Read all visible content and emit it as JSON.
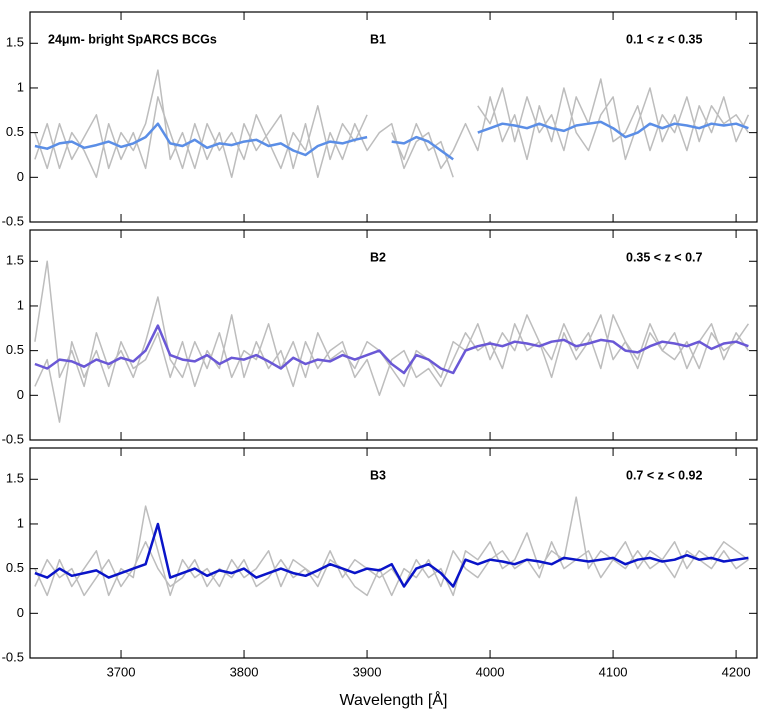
{
  "chart_data": [
    {
      "type": "line",
      "label_left": "24μm- bright SpARCS BCGs",
      "title": "B1",
      "redshift": "0.1 < z < 0.35",
      "x": [
        3630,
        3640,
        3650,
        3660,
        3670,
        3680,
        3690,
        3700,
        3710,
        3720,
        3730,
        3740,
        3750,
        3760,
        3770,
        3780,
        3790,
        3800,
        3810,
        3820,
        3830,
        3840,
        3850,
        3860,
        3870,
        3880,
        3890,
        3900,
        3910,
        3920,
        3930,
        3940,
        3950,
        3960,
        3970,
        3980,
        3990,
        4000,
        4010,
        4020,
        4030,
        4040,
        4050,
        4060,
        4070,
        4080,
        4090,
        4100,
        4110,
        4120,
        4130,
        4140,
        4150,
        4160,
        4170,
        4180,
        4190,
        4200,
        4210
      ],
      "xlim": [
        3626,
        4217
      ],
      "xticks": [
        3700,
        3800,
        3900,
        4000,
        4100,
        4200
      ],
      "ylim": [
        -0.5,
        1.85
      ],
      "yticks": [
        -0.5,
        0,
        0.5,
        1,
        1.5
      ],
      "series": [
        {
          "color": "#bdbdbd",
          "values": [
            0.5,
            0.1,
            0.6,
            0.2,
            0.45,
            0.7,
            0.1,
            0.5,
            0.3,
            0.6,
            1.2,
            0.2,
            0.5,
            0.1,
            0.6,
            0.3,
            0.5,
            0.2,
            0.7,
            0.4,
            0.1,
            0.5,
            0.3,
            0.8,
            0.2,
            0.6,
            0.4,
            0.7,
            null,
            0.5,
            0.2,
            0.6,
            0.3,
            0.4,
            0.0,
            null,
            0.8,
            0.6,
            1.0,
            0.4,
            0.9,
            0.5,
            0.7,
            0.3,
            0.9,
            0.6,
            1.1,
            0.4,
            0.5,
            0.8,
            0.3,
            0.7,
            0.5,
            0.9,
            0.4,
            0.8,
            0.6,
            0.7,
            0.5
          ]
        },
        {
          "color": "#bdbdbd",
          "values": [
            0.2,
            0.6,
            0.1,
            0.5,
            0.3,
            0.0,
            0.6,
            0.2,
            0.5,
            0.1,
            0.9,
            0.5,
            0.1,
            0.6,
            0.2,
            0.5,
            0.0,
            0.6,
            0.3,
            0.5,
            0.7,
            0.1,
            0.6,
            0.0,
            0.5,
            0.2,
            0.6,
            0.3,
            0.5,
            0.6,
            0.1,
            0.4,
            0.5,
            0.1,
            0.3,
            0.6,
            0.3,
            0.9,
            0.4,
            0.7,
            0.2,
            0.8,
            0.4,
            1.0,
            0.5,
            0.3,
            0.7,
            0.9,
            0.2,
            0.6,
            1.0,
            0.4,
            0.7,
            0.3,
            0.8,
            0.5,
            0.9,
            0.4,
            0.7
          ]
        },
        {
          "color": "#5b8ee6",
          "values": [
            0.35,
            0.32,
            0.38,
            0.4,
            0.33,
            0.36,
            0.4,
            0.34,
            0.38,
            0.45,
            0.6,
            0.38,
            0.35,
            0.42,
            0.33,
            0.38,
            0.36,
            0.4,
            0.42,
            0.35,
            0.38,
            0.3,
            0.25,
            0.35,
            0.4,
            0.38,
            0.42,
            0.45,
            null,
            0.4,
            0.38,
            0.45,
            0.4,
            0.3,
            0.2,
            null,
            0.5,
            0.55,
            0.6,
            0.58,
            0.55,
            0.6,
            0.55,
            0.52,
            0.58,
            0.6,
            0.62,
            0.55,
            0.45,
            0.5,
            0.6,
            0.55,
            0.6,
            0.58,
            0.55,
            0.6,
            0.58,
            0.6,
            0.55
          ]
        }
      ]
    },
    {
      "type": "line",
      "title": "B2",
      "redshift": "0.35 < z < 0.7",
      "x": [
        3630,
        3640,
        3650,
        3660,
        3670,
        3680,
        3690,
        3700,
        3710,
        3720,
        3730,
        3740,
        3750,
        3760,
        3770,
        3780,
        3790,
        3800,
        3810,
        3820,
        3830,
        3840,
        3850,
        3860,
        3870,
        3880,
        3890,
        3900,
        3910,
        3920,
        3930,
        3940,
        3950,
        3960,
        3970,
        3980,
        3990,
        4000,
        4010,
        4020,
        4030,
        4040,
        4050,
        4060,
        4070,
        4080,
        4090,
        4100,
        4110,
        4120,
        4130,
        4140,
        4150,
        4160,
        4170,
        4180,
        4190,
        4200,
        4210
      ],
      "xlim": [
        3626,
        4217
      ],
      "xticks": [
        3700,
        3800,
        3900,
        4000,
        4100,
        4200
      ],
      "ylim": [
        -0.5,
        1.85
      ],
      "yticks": [
        -0.5,
        0,
        0.5,
        1,
        1.5
      ],
      "series": [
        {
          "color": "#bdbdbd",
          "values": [
            0.6,
            1.5,
            0.2,
            0.5,
            0.1,
            0.7,
            0.3,
            0.5,
            0.2,
            0.6,
            1.1,
            0.4,
            0.2,
            0.6,
            0.3,
            0.7,
            0.2,
            0.5,
            0.4,
            0.8,
            0.3,
            0.6,
            0.2,
            0.7,
            0.4,
            0.5,
            0.3,
            0.6,
            0.5,
            0.3,
            0.1,
            0.5,
            0.4,
            0.2,
            0.6,
            0.5,
            0.8,
            0.4,
            0.7,
            0.5,
            0.9,
            0.6,
            0.4,
            0.8,
            0.5,
            0.7,
            0.3,
            0.9,
            0.6,
            0.4,
            0.8,
            0.5,
            0.7,
            0.3,
            0.6,
            0.8,
            0.4,
            0.7,
            0.5
          ]
        },
        {
          "color": "#bdbdbd",
          "values": [
            0.1,
            0.4,
            -0.3,
            0.6,
            0.2,
            0.5,
            0.1,
            0.6,
            0.3,
            0.4,
            0.7,
            0.2,
            0.6,
            0.1,
            0.5,
            0.3,
            0.9,
            0.2,
            0.6,
            0.3,
            0.5,
            0.1,
            0.6,
            0.3,
            0.5,
            0.6,
            0.2,
            0.4,
            0.0,
            0.4,
            0.5,
            0.2,
            0.3,
            0.1,
            0.4,
            0.7,
            0.5,
            0.6,
            0.3,
            0.8,
            0.5,
            0.6,
            0.2,
            0.7,
            0.4,
            0.6,
            0.9,
            0.4,
            0.6,
            0.3,
            0.7,
            0.5,
            0.4,
            0.6,
            0.3,
            0.7,
            0.5,
            0.6,
            0.8
          ]
        },
        {
          "color": "#6a58d6",
          "values": [
            0.35,
            0.3,
            0.4,
            0.38,
            0.32,
            0.4,
            0.35,
            0.42,
            0.38,
            0.5,
            0.78,
            0.45,
            0.4,
            0.38,
            0.45,
            0.35,
            0.42,
            0.4,
            0.45,
            0.38,
            0.3,
            0.42,
            0.35,
            0.4,
            0.38,
            0.45,
            0.4,
            0.45,
            0.5,
            0.35,
            0.25,
            0.45,
            0.4,
            0.3,
            0.25,
            0.5,
            0.55,
            0.58,
            0.55,
            0.6,
            0.58,
            0.55,
            0.6,
            0.62,
            0.55,
            0.58,
            0.62,
            0.6,
            0.5,
            0.48,
            0.55,
            0.6,
            0.58,
            0.55,
            0.6,
            0.52,
            0.58,
            0.6,
            0.55
          ]
        }
      ]
    },
    {
      "type": "line",
      "title": "B3",
      "redshift": "0.7 < z < 0.92",
      "xlabel": "Wavelength [Å]",
      "x": [
        3630,
        3640,
        3650,
        3660,
        3670,
        3680,
        3690,
        3700,
        3710,
        3720,
        3730,
        3740,
        3750,
        3760,
        3770,
        3780,
        3790,
        3800,
        3810,
        3820,
        3830,
        3840,
        3850,
        3860,
        3870,
        3880,
        3890,
        3900,
        3910,
        3920,
        3930,
        3940,
        3950,
        3960,
        3970,
        3980,
        3990,
        4000,
        4010,
        4020,
        4030,
        4040,
        4050,
        4060,
        4070,
        4080,
        4090,
        4100,
        4110,
        4120,
        4130,
        4140,
        4150,
        4160,
        4170,
        4180,
        4190,
        4200,
        4210
      ],
      "xlim": [
        3626,
        4217
      ],
      "xticks": [
        3700,
        3800,
        3900,
        4000,
        4100,
        4200
      ],
      "ylim": [
        -0.5,
        1.85
      ],
      "yticks": [
        -0.5,
        0,
        0.5,
        1,
        1.5
      ],
      "series": [
        {
          "color": "#bdbdbd",
          "values": [
            0.5,
            0.2,
            0.6,
            0.3,
            0.5,
            0.7,
            0.2,
            0.5,
            0.4,
            1.2,
            0.7,
            0.2,
            0.6,
            0.4,
            0.5,
            0.3,
            0.6,
            0.4,
            0.5,
            0.7,
            0.3,
            0.6,
            0.5,
            0.4,
            0.7,
            0.4,
            0.6,
            0.5,
            0.4,
            0.5,
            0.3,
            0.6,
            0.4,
            0.5,
            0.2,
            0.7,
            0.6,
            0.8,
            0.5,
            0.6,
            0.9,
            0.5,
            0.7,
            0.6,
            1.3,
            0.5,
            0.7,
            0.6,
            0.8,
            0.5,
            0.7,
            0.6,
            0.8,
            0.5,
            0.7,
            0.6,
            0.8,
            0.7,
            0.6
          ]
        },
        {
          "color": "#bdbdbd",
          "values": [
            0.3,
            0.6,
            0.4,
            0.5,
            0.2,
            0.4,
            0.6,
            0.3,
            0.5,
            0.8,
            0.5,
            0.3,
            0.4,
            0.6,
            0.3,
            0.5,
            0.4,
            0.6,
            0.3,
            0.4,
            0.6,
            0.4,
            0.5,
            0.3,
            0.6,
            0.5,
            0.3,
            0.2,
            0.5,
            0.2,
            0.5,
            0.4,
            0.6,
            0.3,
            0.7,
            0.5,
            0.4,
            0.6,
            0.7,
            0.5,
            0.6,
            0.4,
            0.8,
            0.5,
            0.6,
            0.7,
            0.4,
            0.6,
            0.5,
            0.7,
            0.5,
            0.6,
            0.4,
            0.7,
            0.6,
            0.5,
            0.7,
            0.5,
            0.6
          ]
        },
        {
          "color": "#0a14c8",
          "values": [
            0.45,
            0.4,
            0.5,
            0.42,
            0.45,
            0.48,
            0.4,
            0.45,
            0.5,
            0.55,
            1.0,
            0.4,
            0.45,
            0.5,
            0.42,
            0.48,
            0.45,
            0.5,
            0.4,
            0.45,
            0.5,
            0.45,
            0.42,
            0.48,
            0.55,
            0.5,
            0.45,
            0.5,
            0.48,
            0.55,
            0.3,
            0.5,
            0.55,
            0.45,
            0.3,
            0.6,
            0.55,
            0.6,
            0.58,
            0.55,
            0.6,
            0.58,
            0.55,
            0.62,
            0.6,
            0.58,
            0.6,
            0.62,
            0.55,
            0.6,
            0.62,
            0.58,
            0.6,
            0.65,
            0.6,
            0.62,
            0.58,
            0.6,
            0.62
          ]
        }
      ]
    }
  ]
}
